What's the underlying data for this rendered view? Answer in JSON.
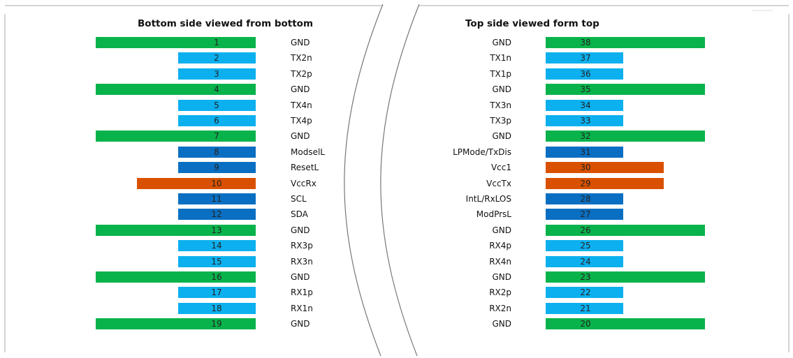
{
  "titles": {
    "bottom": "Bottom side viewed from bottom",
    "top": "Top side viewed form top"
  },
  "colors": {
    "gnd": "#09b34b",
    "highspeed": "#0cb0ef",
    "lowspeed": "#0a6fc2",
    "power": "#d95100"
  },
  "bottom_pins": [
    {
      "num": "1",
      "label": "GND",
      "type": "gnd"
    },
    {
      "num": "2",
      "label": "TX2n",
      "type": "highspeed"
    },
    {
      "num": "3",
      "label": "TX2p",
      "type": "highspeed"
    },
    {
      "num": "4",
      "label": "GND",
      "type": "gnd"
    },
    {
      "num": "5",
      "label": "TX4n",
      "type": "highspeed"
    },
    {
      "num": "6",
      "label": "TX4p",
      "type": "highspeed"
    },
    {
      "num": "7",
      "label": "GND",
      "type": "gnd"
    },
    {
      "num": "8",
      "label": "ModselL",
      "type": "lowspeed"
    },
    {
      "num": "9",
      "label": "ResetL",
      "type": "lowspeed"
    },
    {
      "num": "10",
      "label": "VccRx",
      "type": "power"
    },
    {
      "num": "11",
      "label": "SCL",
      "type": "lowspeed"
    },
    {
      "num": "12",
      "label": "SDA",
      "type": "lowspeed"
    },
    {
      "num": "13",
      "label": "GND",
      "type": "gnd"
    },
    {
      "num": "14",
      "label": "RX3p",
      "type": "highspeed"
    },
    {
      "num": "15",
      "label": "RX3n",
      "type": "highspeed"
    },
    {
      "num": "16",
      "label": "GND",
      "type": "gnd"
    },
    {
      "num": "17",
      "label": "RX1p",
      "type": "highspeed"
    },
    {
      "num": "18",
      "label": "RX1n",
      "type": "highspeed"
    },
    {
      "num": "19",
      "label": "GND",
      "type": "gnd"
    }
  ],
  "top_pins": [
    {
      "num": "38",
      "label": "GND",
      "type": "gnd"
    },
    {
      "num": "37",
      "label": "TX1n",
      "type": "highspeed"
    },
    {
      "num": "36",
      "label": "TX1p",
      "type": "highspeed"
    },
    {
      "num": "35",
      "label": "GND",
      "type": "gnd"
    },
    {
      "num": "34",
      "label": "TX3n",
      "type": "highspeed"
    },
    {
      "num": "33",
      "label": "TX3p",
      "type": "highspeed"
    },
    {
      "num": "32",
      "label": "GND",
      "type": "gnd"
    },
    {
      "num": "31",
      "label": "LPMode/TxDis",
      "type": "lowspeed"
    },
    {
      "num": "30",
      "label": "Vcc1",
      "type": "power"
    },
    {
      "num": "29",
      "label": "VccTx",
      "type": "power"
    },
    {
      "num": "28",
      "label": "IntL/RxLOS",
      "type": "lowspeed"
    },
    {
      "num": "27",
      "label": "ModPrsL",
      "type": "lowspeed"
    },
    {
      "num": "26",
      "label": "GND",
      "type": "gnd"
    },
    {
      "num": "25",
      "label": "RX4p",
      "type": "highspeed"
    },
    {
      "num": "24",
      "label": "RX4n",
      "type": "highspeed"
    },
    {
      "num": "23",
      "label": "GND",
      "type": "gnd"
    },
    {
      "num": "22",
      "label": "RX2p",
      "type": "highspeed"
    },
    {
      "num": "21",
      "label": "RX2n",
      "type": "highspeed"
    },
    {
      "num": "20",
      "label": "GND",
      "type": "gnd"
    }
  ]
}
